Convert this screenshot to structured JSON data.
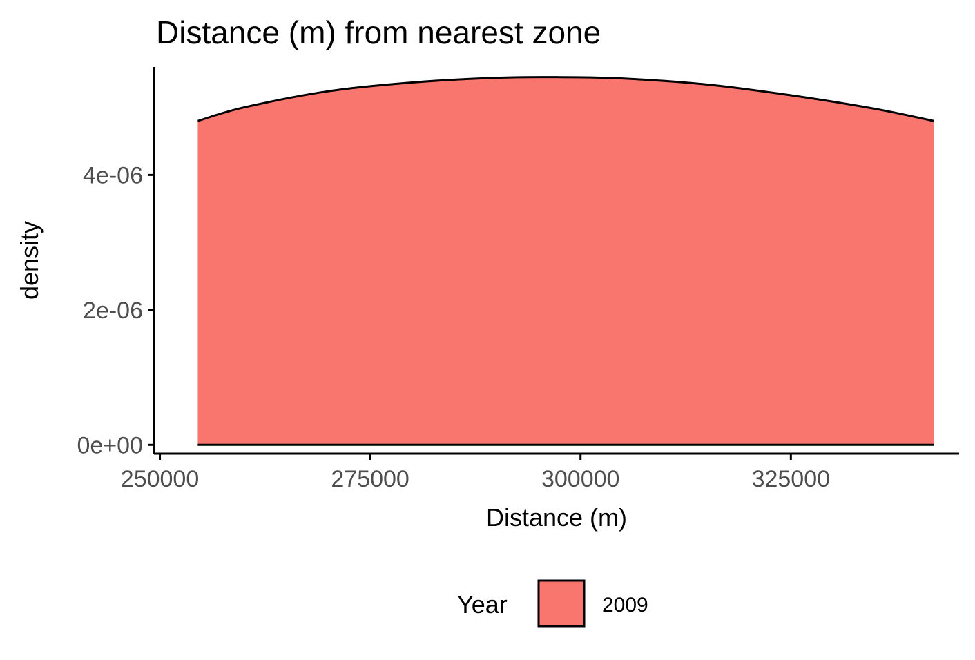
{
  "chart_data": {
    "type": "area",
    "title": "Distance (m) from nearest zone",
    "xlabel": "Distance (m)",
    "ylabel": "density",
    "xlim": [
      249300,
      345000
    ],
    "ylim": [
      -1.3e-07,
      5.6e-06
    ],
    "x_ticks": [
      250000,
      275000,
      300000,
      325000
    ],
    "x_tick_labels": [
      "250000",
      "275000",
      "300000",
      "325000"
    ],
    "y_ticks": [
      0,
      2e-06,
      4e-06
    ],
    "y_tick_labels": [
      "0e+00",
      "2e-06",
      "4e-06"
    ],
    "grid": false,
    "legend": {
      "title": "Year",
      "position": "bottom",
      "entries": [
        "2009"
      ]
    },
    "series": [
      {
        "name": "2009",
        "color": "#f8766d",
        "x": [
          254500,
          260000,
          270000,
          280000,
          290000,
          297500,
          305000,
          315000,
          325000,
          335000,
          342000
        ],
        "y": [
          4.8e-06,
          5e-06,
          5.24e-06,
          5.37e-06,
          5.44e-06,
          5.45e-06,
          5.43e-06,
          5.34e-06,
          5.18e-06,
          4.98e-06,
          4.8e-06
        ]
      }
    ]
  }
}
